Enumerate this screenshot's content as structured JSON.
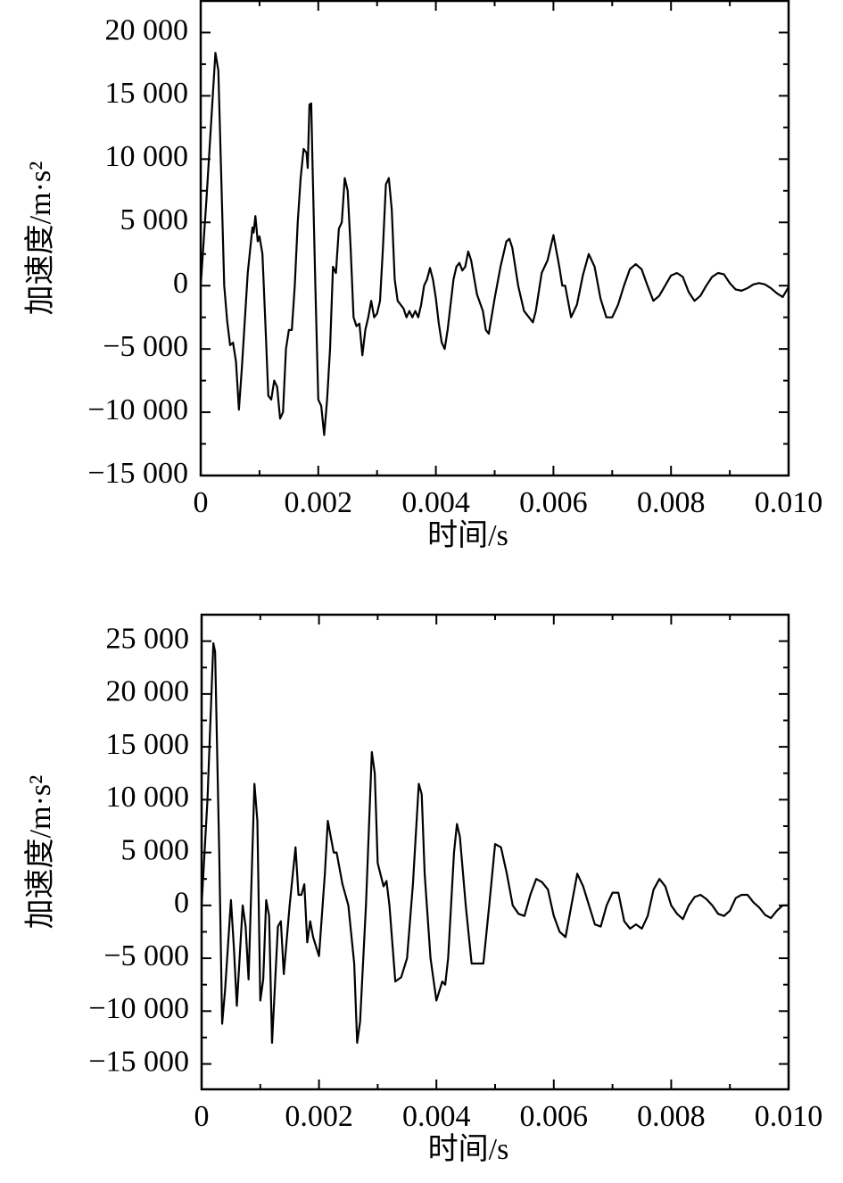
{
  "chart_data": [
    {
      "type": "line",
      "x_label": "时间/s",
      "y_label": "加速度/m·s²",
      "color": "#000000",
      "xlim": [
        0,
        0.01
      ],
      "ylim": [
        -15000,
        22500
      ],
      "xticks": [
        0,
        0.002,
        0.004,
        0.006,
        0.008,
        {
          "value": 0.01,
          "label": "0.010"
        }
      ],
      "yticks": [
        {
          "value": -15000,
          "label": "−15 000"
        },
        {
          "value": -10000,
          "label": "−10 000"
        },
        {
          "value": -5000,
          "label": "−5 000"
        },
        0,
        {
          "value": 5000,
          "label": "5 000"
        },
        {
          "value": 10000,
          "label": "10 000"
        },
        {
          "value": 15000,
          "label": "15 000"
        },
        {
          "value": 20000,
          "label": "20 000"
        }
      ],
      "minor_xticks": [
        0.001,
        0.003,
        0.005,
        0.007,
        0.009
      ],
      "minor_yticks": [
        -12500,
        -7500,
        -2500,
        2500,
        7500,
        12500,
        17500,
        22500
      ],
      "x": [
        0,
        0.0001,
        0.00025,
        0.0003,
        0.0004,
        0.00045,
        0.0005,
        0.00055,
        0.0006,
        0.00065,
        0.0007,
        0.0008,
        0.00088,
        0.0009,
        0.00093,
        0.00097,
        0.001,
        0.00105,
        0.0011,
        0.00115,
        0.0012,
        0.00125,
        0.0013,
        0.00135,
        0.0014,
        0.00145,
        0.0015,
        0.00155,
        0.0016,
        0.00165,
        0.0017,
        0.00175,
        0.0018,
        0.00182,
        0.00185,
        0.00188,
        0.0019,
        0.00195,
        0.002,
        0.00205,
        0.0021,
        0.00215,
        0.0022,
        0.00225,
        0.0023,
        0.00235,
        0.0024,
        0.00245,
        0.0025,
        0.00255,
        0.0026,
        0.00265,
        0.0027,
        0.00275,
        0.0028,
        0.00285,
        0.0029,
        0.00295,
        0.003,
        0.00305,
        0.0031,
        0.00315,
        0.0032,
        0.00325,
        0.0033,
        0.00335,
        0.0034,
        0.00345,
        0.0035,
        0.00355,
        0.0036,
        0.00365,
        0.0037,
        0.00375,
        0.0038,
        0.00385,
        0.0039,
        0.00395,
        0.004,
        0.00405,
        0.0041,
        0.00415,
        0.0042,
        0.0043,
        0.00435,
        0.0044,
        0.00445,
        0.0045,
        0.00455,
        0.0046,
        0.0047,
        0.0048,
        0.00485,
        0.0049,
        0.005,
        0.0051,
        0.0052,
        0.00525,
        0.0053,
        0.0054,
        0.0055,
        0.00565,
        0.0057,
        0.0058,
        0.0059,
        0.006,
        0.0061,
        0.00615,
        0.0062,
        0.0063,
        0.0064,
        0.0065,
        0.0066,
        0.0067,
        0.0068,
        0.0069,
        0.007,
        0.0071,
        0.0072,
        0.0073,
        0.0074,
        0.0075,
        0.0076,
        0.0077,
        0.0078,
        0.0079,
        0.008,
        0.0081,
        0.0082,
        0.0083,
        0.0084,
        0.0085,
        0.0086,
        0.0087,
        0.0088,
        0.0089,
        0.009,
        0.0091,
        0.0092,
        0.0093,
        0.0094,
        0.0095,
        0.0096,
        0.0097,
        0.0098,
        0.0099,
        0.01
      ],
      "values": [
        0,
        7000,
        18400,
        17000,
        0,
        -2800,
        -4700,
        -4500,
        -6000,
        -9800,
        -6500,
        1000,
        4600,
        4200,
        5500,
        3500,
        3900,
        2500,
        -3000,
        -8700,
        -9000,
        -7500,
        -8000,
        -10500,
        -10000,
        -5000,
        -3500,
        -3500,
        0,
        5000,
        8500,
        10800,
        10500,
        9300,
        14300,
        14400,
        10000,
        0,
        -9000,
        -9500,
        -11800,
        -9000,
        -5000,
        1500,
        1000,
        4500,
        5000,
        8500,
        7500,
        3000,
        -2500,
        -3200,
        -3000,
        -5500,
        -3500,
        -2500,
        -1200,
        -2500,
        -2200,
        -1200,
        3000,
        8000,
        8500,
        6000,
        500,
        -1200,
        -1500,
        -1800,
        -2500,
        -2000,
        -2500,
        -2000,
        -2500,
        -1500,
        0,
        500,
        1400,
        500,
        -1000,
        -3000,
        -4500,
        -5000,
        -3500,
        500,
        1500,
        1800,
        1200,
        1500,
        2700,
        2000,
        -700,
        -2000,
        -3500,
        -3800,
        -1000,
        1500,
        3500,
        3700,
        3000,
        0,
        -2000,
        -2900,
        -2000,
        1000,
        2000,
        4000,
        1500,
        0,
        0,
        -2500,
        -1500,
        800,
        2500,
        1500,
        -1000,
        -2500,
        -2500,
        -1500,
        0,
        1300,
        1700,
        1300,
        0,
        -1200,
        -800,
        0,
        800,
        1000,
        700,
        -500,
        -1200,
        -800,
        0,
        700,
        1000,
        900,
        200,
        -300,
        -400,
        -200,
        100,
        200,
        100,
        -200,
        -600,
        -900,
        -100
      ]
    },
    {
      "type": "line",
      "x_label": "时间/s",
      "y_label": "加速度/m·s²",
      "color": "#000000",
      "xlim": [
        0,
        0.01
      ],
      "ylim": [
        -17400,
        27500
      ],
      "xticks": [
        0,
        0.002,
        0.004,
        0.006,
        0.008,
        {
          "value": 0.01,
          "label": "0.010"
        }
      ],
      "yticks": [
        {
          "value": -15000,
          "label": "−15 000"
        },
        {
          "value": -10000,
          "label": "−10 000"
        },
        {
          "value": -5000,
          "label": "−5 000"
        },
        0,
        {
          "value": 5000,
          "label": "5 000"
        },
        {
          "value": 10000,
          "label": "10 000"
        },
        {
          "value": 15000,
          "label": "15 000"
        },
        {
          "value": 20000,
          "label": "20 000"
        },
        {
          "value": 25000,
          "label": "25 000"
        }
      ],
      "minor_xticks": [
        0.001,
        0.003,
        0.005,
        0.007,
        0.009
      ],
      "minor_yticks": [
        -12500,
        -7500,
        -2500,
        2500,
        7500,
        12500,
        17500,
        22500
      ],
      "x": [
        0,
        0.0001,
        0.0002,
        0.00023,
        0.0003,
        0.00035,
        0.0004,
        0.0005,
        0.00055,
        0.0006,
        0.0007,
        0.00075,
        0.0008,
        0.0009,
        0.00095,
        0.001,
        0.00105,
        0.0011,
        0.00115,
        0.0012,
        0.0013,
        0.00135,
        0.0014,
        0.0015,
        0.0016,
        0.00165,
        0.0017,
        0.00175,
        0.0018,
        0.00185,
        0.0019,
        0.002,
        0.0021,
        0.00215,
        0.0022,
        0.00225,
        0.0023,
        0.0024,
        0.0025,
        0.0026,
        0.00265,
        0.0027,
        0.0028,
        0.0029,
        0.00295,
        0.003,
        0.0031,
        0.00315,
        0.0032,
        0.0033,
        0.0034,
        0.0035,
        0.0036,
        0.0037,
        0.00375,
        0.0038,
        0.0039,
        0.004,
        0.0041,
        0.00415,
        0.0042,
        0.0043,
        0.00435,
        0.0044,
        0.0045,
        0.0046,
        0.0047,
        0.0048,
        0.0049,
        0.005,
        0.0051,
        0.0052,
        0.0053,
        0.0054,
        0.0055,
        0.0056,
        0.0057,
        0.0058,
        0.0059,
        0.006,
        0.0061,
        0.0062,
        0.0063,
        0.0064,
        0.0065,
        0.0066,
        0.0067,
        0.0068,
        0.0069,
        0.007,
        0.0071,
        0.0072,
        0.0073,
        0.0074,
        0.0075,
        0.0076,
        0.0077,
        0.0078,
        0.0079,
        0.008,
        0.0081,
        0.0082,
        0.0083,
        0.0084,
        0.0085,
        0.0086,
        0.0087,
        0.0088,
        0.0089,
        0.009,
        0.0091,
        0.0092,
        0.0093,
        0.0094,
        0.0095,
        0.0096,
        0.0097,
        0.0098,
        0.0099,
        0.01
      ],
      "values": [
        0,
        10000,
        24800,
        24000,
        5000,
        -11200,
        -8000,
        500,
        -4000,
        -9500,
        0,
        -2000,
        -7000,
        11500,
        8000,
        -9000,
        -7000,
        500,
        -1000,
        -13000,
        -2000,
        -1500,
        -6500,
        0,
        5500,
        1000,
        1000,
        2000,
        -3500,
        -1500,
        -3000,
        -4800,
        3000,
        8000,
        6500,
        5000,
        5000,
        2000,
        0,
        -5500,
        -13000,
        -11000,
        0,
        14500,
        12500,
        4000,
        1800,
        2300,
        0,
        -7200,
        -6800,
        -5000,
        2000,
        11500,
        10500,
        3000,
        -5000,
        -9000,
        -7200,
        -7500,
        -5000,
        5000,
        7700,
        6500,
        0,
        -5500,
        -5500,
        -5500,
        0,
        5800,
        5500,
        3000,
        0,
        -800,
        -1000,
        1000,
        2500,
        2200,
        1500,
        -1000,
        -2500,
        -3000,
        0,
        3000,
        1800,
        0,
        -1800,
        -2000,
        0,
        1200,
        1200,
        -1500,
        -2200,
        -1800,
        -2200,
        -1000,
        1500,
        2500,
        1800,
        0,
        -800,
        -1300,
        0,
        800,
        1000,
        600,
        0,
        -800,
        -1000,
        -500,
        700,
        1000,
        1000,
        300,
        -200,
        -900,
        -1200,
        -500,
        0,
        0
      ]
    }
  ]
}
